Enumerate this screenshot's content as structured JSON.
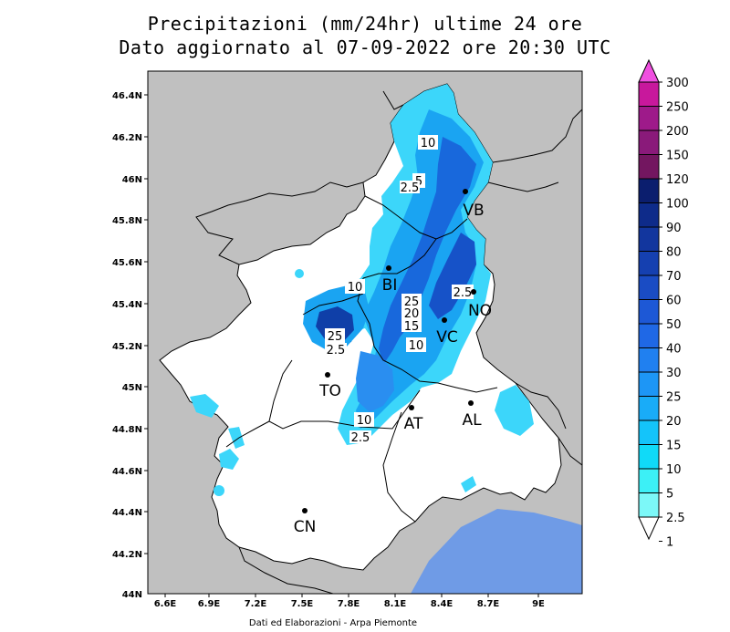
{
  "title": {
    "line1": "Precipitazioni (mm/24hr) ultime 24 ore",
    "line2": "Dato aggiornato al 07-09-2022 ore 20:30 UTC"
  },
  "credit": "Dati ed Elaborazioni - Arpa Piemonte",
  "axes": {
    "y_ticks": [
      "46.4N",
      "46.2N",
      "46N",
      "45.8N",
      "45.6N",
      "45.4N",
      "45.2N",
      "45N",
      "44.8N",
      "44.6N",
      "44.4N",
      "44.2N",
      "44N"
    ],
    "x_ticks": [
      "6.6E",
      "6.9E",
      "7.2E",
      "7.5E",
      "7.8E",
      "8.1E",
      "8.4E",
      "8.7E",
      "9E"
    ]
  },
  "cities": [
    {
      "name": "VB"
    },
    {
      "name": "BI"
    },
    {
      "name": "NO"
    },
    {
      "name": "VC"
    },
    {
      "name": "TO"
    },
    {
      "name": "AT"
    },
    {
      "name": "AL"
    },
    {
      "name": "CN"
    }
  ],
  "contour_labels": [
    "10",
    "5",
    "2.5",
    "10",
    "25",
    "20",
    "15",
    "10",
    "2.5",
    "25",
    "2.5",
    "10",
    "2.5"
  ],
  "legend": {
    "labels": [
      "300",
      "250",
      "200",
      "150",
      "120",
      "100",
      "90",
      "80",
      "70",
      "60",
      "50",
      "40",
      "30",
      "25",
      "20",
      "15",
      "10",
      "5",
      "2.5",
      "1"
    ],
    "colors": [
      "#f04fe0",
      "#c8189c",
      "#9e1a8a",
      "#8a1a7a",
      "#731660",
      "#0b1e6e",
      "#0e2b8a",
      "#12369e",
      "#1540b0",
      "#1a4cc4",
      "#1d58d6",
      "#1f68e6",
      "#2080f0",
      "#1d96f6",
      "#19acf8",
      "#14c4fa",
      "#10daf8",
      "#3cf0f6",
      "#7cf8f8",
      "#ffffff"
    ],
    "colors_note": ""
  },
  "colors": {
    "outside": "#c0c0c0",
    "region": "#ffffff",
    "sea": "#6f9be6",
    "light_rain": "#29d4f8",
    "medium_rain": "#1aa0f0",
    "heavy_rain": "#1660d8",
    "very_heavy_rain": "#0f3fa8"
  }
}
